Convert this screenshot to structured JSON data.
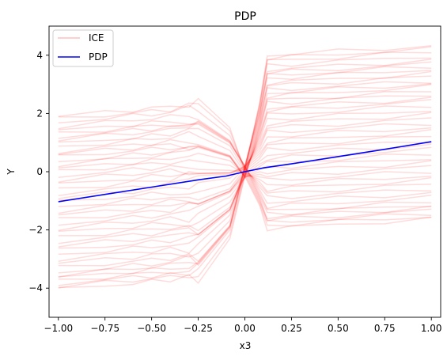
{
  "chart_data": {
    "type": "line",
    "title": "PDP",
    "xlabel": "x3",
    "ylabel": "Y",
    "xlim": [
      -1.05,
      1.05
    ],
    "ylim": [
      -5,
      5
    ],
    "xticks": [
      -1.0,
      -0.75,
      -0.5,
      -0.25,
      0.0,
      0.25,
      0.5,
      0.75,
      1.0
    ],
    "xtick_labels": [
      "−1.00",
      "−0.75",
      "−0.50",
      "−0.25",
      "0.00",
      "0.25",
      "0.50",
      "0.75",
      "1.00"
    ],
    "yticks": [
      -4,
      -2,
      0,
      2,
      4
    ],
    "ytick_labels": [
      "−4",
      "−2",
      "0",
      "2",
      "4"
    ],
    "grid": false,
    "legend_position": "top-left",
    "ice_color": "#ff0000",
    "pdp_color": "#0000ff",
    "ice_left_values": [
      1.9,
      1.8,
      1.7,
      1.55,
      1.4,
      1.3,
      1.2,
      1.1,
      0.95,
      0.85,
      0.7,
      0.6,
      0.5,
      0.35,
      0.25,
      0.1,
      0.0,
      -0.15,
      -0.3,
      -0.45,
      -0.6,
      -0.75,
      -0.9,
      -1.05,
      -1.2,
      -1.35,
      -1.5,
      -1.65,
      -1.8,
      -1.95,
      -2.1,
      -2.25,
      -2.4,
      -2.55,
      -2.7,
      -2.85,
      -3.0,
      -3.15,
      -3.3,
      -3.45,
      -3.55,
      -3.65,
      -3.75,
      -3.85,
      -3.95,
      -4.05
    ],
    "ice_slope": 1.05,
    "ice_center_range": [
      -0.25,
      0.25
    ],
    "series": [
      {
        "name": "ICE",
        "x": [
          -1.0,
          1.0
        ],
        "values": [
          -4.05,
          4.15
        ]
      },
      {
        "name": "PDP",
        "x": [
          -1.0,
          -0.75,
          -0.5,
          -0.25,
          -0.1,
          0.0,
          0.1,
          0.25,
          0.5,
          0.75,
          1.0
        ],
        "values": [
          -1.03,
          -0.78,
          -0.53,
          -0.28,
          -0.15,
          0.0,
          0.13,
          0.27,
          0.52,
          0.77,
          1.03
        ]
      }
    ]
  }
}
